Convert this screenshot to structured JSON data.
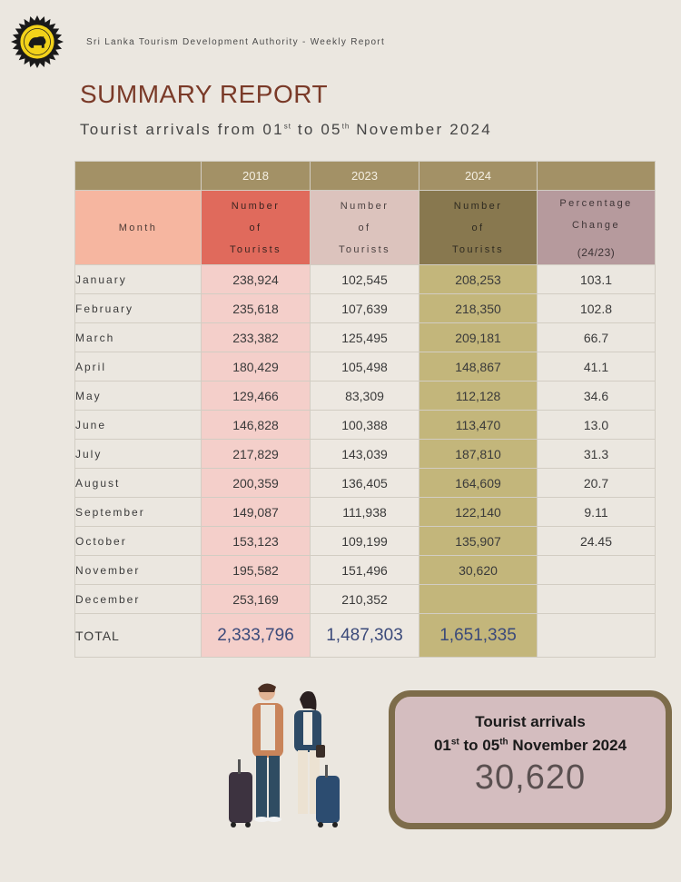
{
  "header": {
    "org": "Sri Lanka Tourism Development Authority - Weekly Report",
    "title": "SUMMARY REPORT",
    "subtitle_pre": "Tourist arrivals from 01",
    "subtitle_sup1": "st",
    "subtitle_mid": " to 05",
    "subtitle_sup2": "th",
    "subtitle_post": " November 2024"
  },
  "table": {
    "years": [
      "2018",
      "2023",
      "2024"
    ],
    "month_header": "Month",
    "count_header": [
      "Number",
      "of",
      "Tourists"
    ],
    "pct_header": [
      "Percentage",
      "Change",
      "(24/23)"
    ],
    "rows": [
      {
        "month": "January",
        "y2018": "238,924",
        "y2023": "102,545",
        "y2024": "208,253",
        "pct": "103.1"
      },
      {
        "month": "February",
        "y2018": "235,618",
        "y2023": "107,639",
        "y2024": "218,350",
        "pct": "102.8"
      },
      {
        "month": "March",
        "y2018": "233,382",
        "y2023": "125,495",
        "y2024": "209,181",
        "pct": "66.7"
      },
      {
        "month": "April",
        "y2018": "180,429",
        "y2023": "105,498",
        "y2024": "148,867",
        "pct": "41.1"
      },
      {
        "month": "May",
        "y2018": "129,466",
        "y2023": "83,309",
        "y2024": "112,128",
        "pct": "34.6"
      },
      {
        "month": "June",
        "y2018": "146,828",
        "y2023": "100,388",
        "y2024": "113,470",
        "pct": "13.0"
      },
      {
        "month": "July",
        "y2018": "217,829",
        "y2023": "143,039",
        "y2024": "187,810",
        "pct": "31.3"
      },
      {
        "month": "August",
        "y2018": "200,359",
        "y2023": "136,405",
        "y2024": "164,609",
        "pct": "20.7"
      },
      {
        "month": "September",
        "y2018": "149,087",
        "y2023": "111,938",
        "y2024": "122,140",
        "pct": "9.11"
      },
      {
        "month": "October",
        "y2018": "153,123",
        "y2023": "109,199",
        "y2024": "135,907",
        "pct": "24.45"
      },
      {
        "month": "November",
        "y2018": "195,582",
        "y2023": "151,496",
        "y2024": "30,620",
        "pct": ""
      },
      {
        "month": "December",
        "y2018": "253,169",
        "y2023": "210,352",
        "y2024": "",
        "pct": ""
      }
    ],
    "total": {
      "label": "TOTAL",
      "y2018": "2,333,796",
      "y2023": "1,487,303",
      "y2024": "1,651,335"
    }
  },
  "summary_box": {
    "title": "Tourist arrivals",
    "range_a": "01",
    "range_sup1": "st",
    "range_b": " to 05",
    "range_sup2": "th",
    "range_c": " November 2024",
    "value": "30,620"
  },
  "colors": {
    "background": "#ebe7e0",
    "title": "#7a3a28",
    "header_bar": "#a39166",
    "col_2018": "#f4cfca",
    "col_2024": "#c3b67b",
    "box_border": "#7d6c4a",
    "box_fill": "#d4bdbf"
  },
  "icons": [
    "sri-lanka-tourism-emblem-icon",
    "traveling-couple-illustration"
  ]
}
